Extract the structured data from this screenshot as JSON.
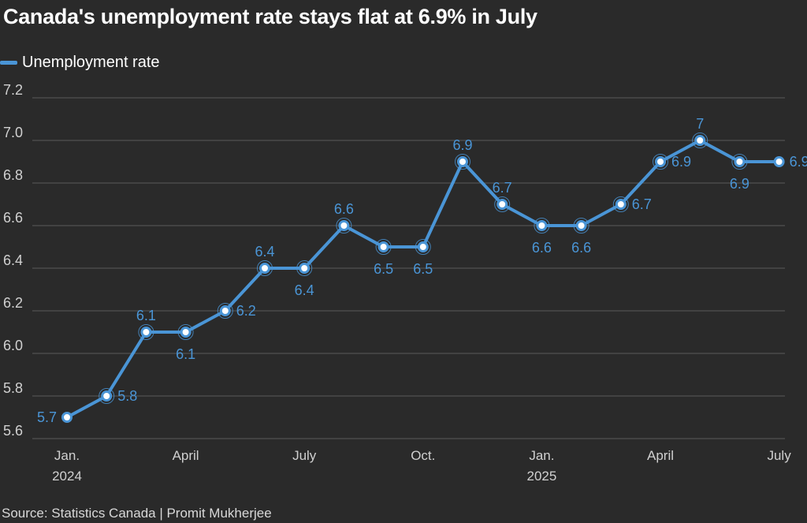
{
  "chart_data": {
    "type": "line",
    "title": "Canada's unemployment rate stays flat at 6.9% in July",
    "series": [
      {
        "name": "Unemployment rate",
        "color": "#4a95d6",
        "values": [
          5.7,
          5.8,
          6.1,
          6.1,
          6.2,
          6.4,
          6.4,
          6.6,
          6.5,
          6.5,
          6.9,
          6.7,
          6.6,
          6.6,
          6.7,
          6.9,
          7.0,
          6.9,
          6.9
        ]
      }
    ],
    "data_labels": [
      "5.7",
      "5.8",
      "6.1",
      "6.1",
      "6.2",
      "6.4",
      "6.4",
      "6.6",
      "6.5",
      "6.5",
      "6.9",
      "6.7",
      "6.6",
      "6.6",
      "6.7",
      "6.9",
      "7",
      "6.9",
      "6.9"
    ],
    "x_tick_labels": [
      {
        "index": 0,
        "lines": [
          "Jan.",
          "2024"
        ]
      },
      {
        "index": 3,
        "lines": [
          "April"
        ]
      },
      {
        "index": 6,
        "lines": [
          "July"
        ]
      },
      {
        "index": 9,
        "lines": [
          "Oct."
        ]
      },
      {
        "index": 12,
        "lines": [
          "Jan.",
          "2025"
        ]
      },
      {
        "index": 15,
        "lines": [
          "April"
        ]
      },
      {
        "index": 18,
        "lines": [
          "July"
        ]
      }
    ],
    "y_ticks": [
      "5.6",
      "5.8",
      "6.0",
      "6.2",
      "6.4",
      "6.6",
      "6.8",
      "7.0",
      "7.2"
    ],
    "ylim": [
      5.6,
      7.2
    ],
    "xlabel": "",
    "ylabel": "",
    "grid": true,
    "legend": "top-left"
  },
  "source": "Source: Statistics Canada | Promit Mukherjee",
  "colors": {
    "background": "#2a2a2a",
    "line": "#4a95d6",
    "grid": "#5a5a5a",
    "text": "#ffffff",
    "axis_text": "#d0d0d0"
  }
}
